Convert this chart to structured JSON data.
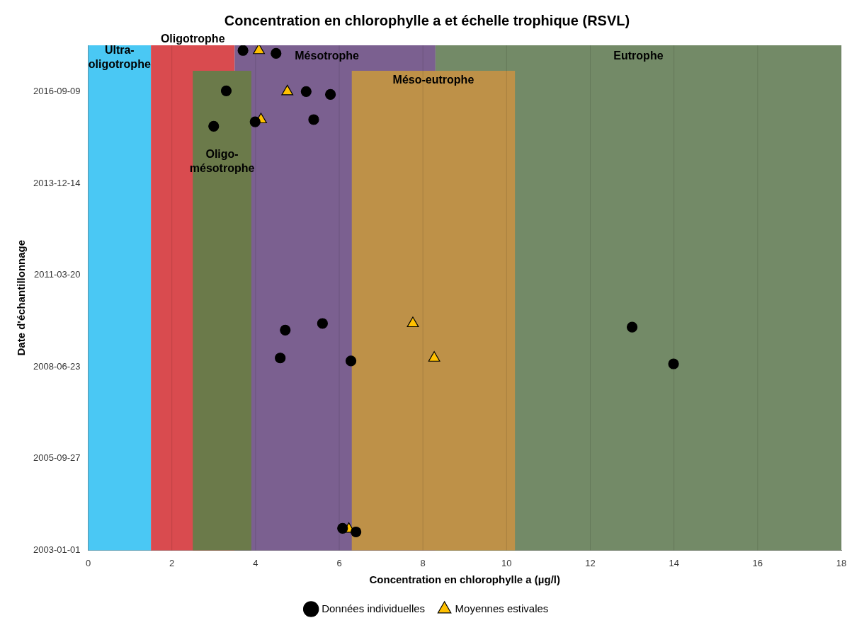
{
  "chart_data": {
    "type": "scatter",
    "orientation": "horizontal",
    "title": "Concentration en chlorophylle a et échelle trophique (RSVL)",
    "xlabel": "Concentration en chlorophylle a (µg/l)",
    "ylabel": "Date d'échantillonnage",
    "xlim": [
      0,
      18
    ],
    "xticks": [
      0,
      2,
      4,
      6,
      8,
      10,
      12,
      14,
      16,
      18
    ],
    "ylim": [
      "2003-01-01",
      "2018-01-26"
    ],
    "yticks": [
      "2003-01-01",
      "2005-09-27",
      "2008-06-23",
      "2011-03-20",
      "2013-12-14",
      "2016-09-09"
    ],
    "grid": "x",
    "legend": "bottom",
    "bands": [
      {
        "axis": "x",
        "from": 0,
        "to": 1.5,
        "label": "Ultra-oligotrophe",
        "color": "#4ac8f4"
      },
      {
        "axis": "x",
        "from": 1.5,
        "to": 3.5,
        "label": "Oligotrophe",
        "color": "#d94b4f"
      },
      {
        "axis": "x",
        "from": 3.5,
        "to": 8.3,
        "label": "Mésotrophe",
        "color": "#7b6090"
      },
      {
        "axis": "x",
        "from": 8.3,
        "to": 18,
        "label": "Eutrophe",
        "color": "#738a67"
      },
      {
        "axis": "x",
        "from": 2.5,
        "to": 3.9,
        "label": "Oligo-mésotrophe",
        "color": "#6b7a4a"
      },
      {
        "axis": "x",
        "from": 6.3,
        "to": 10.2,
        "label": "Méso-eutrophe",
        "color": "#be9148"
      }
    ],
    "series": [
      {
        "name": "Données individuelles",
        "color": "#000000",
        "marker": "circle",
        "x": [
          "2017-12-01",
          "2017-10-30",
          "2016-09-17",
          "2016-09-09",
          "2016-08-08",
          "2015-08-28",
          "2015-10-15",
          "2015-11-08",
          "2009-07-28",
          "2009-10-08",
          "2008-09-27",
          "2008-08-26",
          "2009-08-30",
          "2008-07-25",
          "2003-08-29",
          "2003-07-20"
        ],
        "values": [
          3.7,
          4.49,
          3.3,
          5.21,
          5.79,
          3.0,
          3.99,
          5.39,
          4.71,
          5.6,
          4.59,
          6.28,
          13.0,
          13.99,
          6.08,
          6.4
        ]
      },
      {
        "name": "Moyennes estivales",
        "color": "#ffc000",
        "marker": "triangle",
        "x": [
          "2017-12-01",
          "2016-09-09",
          "2015-11-08",
          "2009-10-08",
          "2008-09-27",
          "2003-08-20"
        ],
        "values": [
          4.08,
          4.76,
          4.13,
          7.76,
          8.27,
          6.23
        ]
      }
    ]
  }
}
